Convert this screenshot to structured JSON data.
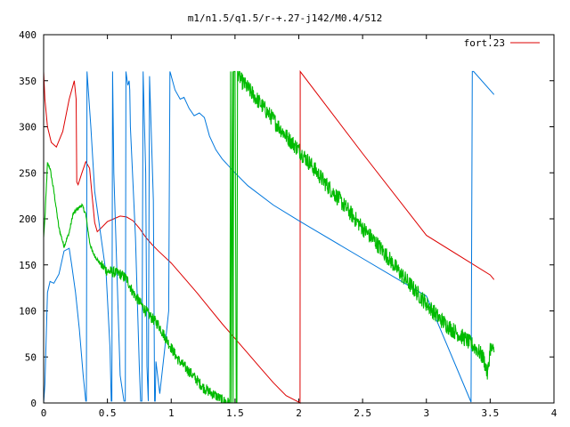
{
  "chart_data": {
    "type": "line",
    "title": "m1/n1.5/q1.5/r-+.27-j142/M0.4/512",
    "xlim": [
      0,
      4
    ],
    "ylim": [
      0,
      400
    ],
    "xticks": [
      0,
      0.5,
      1,
      1.5,
      2,
      2.5,
      3,
      3.5,
      4
    ],
    "yticks": [
      0,
      50,
      100,
      150,
      200,
      250,
      300,
      350,
      400
    ],
    "xtick_labels": [
      "0",
      "0.5",
      "1",
      "1.5",
      "2",
      "2.5",
      "3",
      "3.5",
      "4"
    ],
    "ytick_labels": [
      "0",
      "50",
      "100",
      "150",
      "200",
      "250",
      "300",
      "350",
      "400"
    ],
    "grid": false,
    "legend_position": "top-right",
    "legend_label": "fort.23",
    "colors": {
      "red": "#dd0000",
      "green": "#00bb00",
      "blue": "#0077dd",
      "axis": "#000000"
    },
    "series": [
      {
        "name": "fort.23",
        "color": "#dd0000",
        "x": [
          0,
          0.01,
          0.03,
          0.06,
          0.1,
          0.15,
          0.2,
          0.24,
          0.255,
          0.26,
          0.27,
          0.3,
          0.33,
          0.36,
          0.38,
          0.4,
          0.42,
          0.45,
          0.5,
          0.55,
          0.6,
          0.65,
          0.7,
          0.75,
          0.8,
          0.85,
          0.9,
          1.0,
          1.1,
          1.2,
          1.3,
          1.4,
          1.5,
          1.6,
          1.7,
          1.8,
          1.9,
          2.0,
          2.01,
          2.011,
          2.5,
          3.0,
          3.5,
          3.53
        ],
        "y": [
          360,
          330,
          300,
          283,
          278,
          295,
          330,
          350,
          330,
          240,
          237,
          250,
          262,
          255,
          225,
          196,
          186,
          190,
          197,
          200,
          203,
          202,
          198,
          190,
          180,
          172,
          165,
          152,
          136,
          120,
          103,
          86,
          70,
          54,
          38,
          22,
          8,
          1,
          0,
          360,
          271,
          182,
          139,
          134
        ]
      },
      {
        "name": "",
        "color": "#0077dd",
        "x": [
          0,
          0.01,
          0.03,
          0.05,
          0.08,
          0.12,
          0.16,
          0.2,
          0.22,
          0.25,
          0.28,
          0.31,
          0.33,
          0.335,
          0.34,
          0.37,
          0.4,
          0.43,
          0.46,
          0.49,
          0.52,
          0.53,
          0.535,
          0.54,
          0.55,
          0.6,
          0.63,
          0.64,
          0.645,
          0.66,
          0.67,
          0.675,
          0.68,
          0.72,
          0.75,
          0.76,
          0.77,
          0.78,
          0.8,
          0.81,
          0.82,
          0.83,
          0.86,
          0.87,
          0.875,
          0.88,
          0.91,
          0.95,
          0.98,
          0.99,
          0.995,
          1.0,
          1.03,
          1.07,
          1.1,
          1.14,
          1.18,
          1.22,
          1.26,
          1.3,
          1.35,
          1.4,
          1.5,
          1.6,
          1.8,
          2.0,
          2.5,
          3.0,
          3.35,
          3.36,
          3.37,
          3.53
        ],
        "y": [
          0,
          20,
          120,
          132,
          130,
          140,
          165,
          168,
          150,
          120,
          80,
          30,
          2,
          2,
          360,
          300,
          230,
          200,
          170,
          140,
          60,
          2,
          2,
          360,
          250,
          30,
          2,
          2,
          360,
          345,
          350,
          340,
          300,
          180,
          40,
          2,
          2,
          360,
          250,
          40,
          2,
          355,
          220,
          2,
          2,
          45,
          10,
          60,
          100,
          360,
          358,
          355,
          340,
          330,
          332,
          320,
          312,
          315,
          310,
          290,
          275,
          265,
          250,
          236,
          215,
          198,
          157,
          116,
          1,
          360,
          360,
          335
        ]
      },
      {
        "name": "",
        "color": "#00bb00",
        "noise": true,
        "x": [
          0,
          0.01,
          0.03,
          0.05,
          0.08,
          0.12,
          0.16,
          0.2,
          0.23,
          0.26,
          0.3,
          0.33,
          0.36,
          0.38,
          0.4,
          0.45,
          0.5,
          0.55,
          0.6,
          0.65,
          0.7,
          0.75,
          0.8,
          0.85,
          0.9,
          0.95,
          1.0,
          1.05,
          1.1,
          1.15,
          1.2,
          1.25,
          1.3,
          1.35,
          1.4,
          1.43,
          1.46,
          1.465,
          1.47,
          1.48,
          1.485,
          1.49,
          1.5,
          1.51,
          1.515,
          1.52,
          1.55,
          1.6,
          1.7,
          1.8,
          1.9,
          2.0,
          2.1,
          2.2,
          2.3,
          2.4,
          2.5,
          2.6,
          2.7,
          2.8,
          2.9,
          3.0,
          3.1,
          3.2,
          3.3,
          3.4,
          3.45,
          3.48,
          3.5,
          3.53
        ],
        "y": [
          180,
          200,
          260,
          255,
          230,
          190,
          170,
          185,
          205,
          210,
          215,
          205,
          175,
          165,
          160,
          150,
          143,
          142,
          140,
          135,
          120,
          110,
          100,
          92,
          85,
          72,
          60,
          48,
          40,
          33,
          25,
          17,
          12,
          8,
          3,
          1,
          0,
          360,
          0,
          360,
          0,
          360,
          360,
          0,
          0,
          360,
          350,
          342,
          325,
          308,
          290,
          275,
          258,
          240,
          224,
          207,
          190,
          175,
          158,
          140,
          124,
          108,
          92,
          80,
          70,
          58,
          48,
          30,
          60,
          55
        ]
      }
    ]
  }
}
